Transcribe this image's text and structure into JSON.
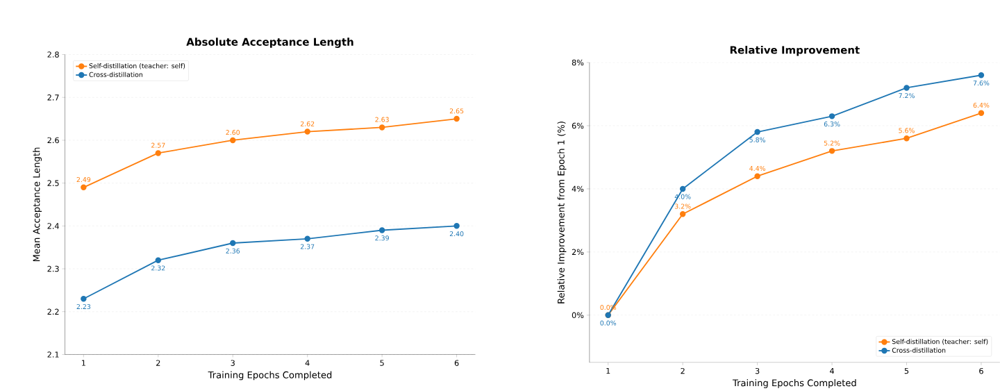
{
  "chart_data": [
    {
      "type": "line",
      "title": "Absolute Acceptance Length",
      "xlabel": "Training Epochs Completed",
      "ylabel": "Mean Acceptance Length",
      "x": [
        1,
        2,
        3,
        4,
        5,
        6
      ],
      "xlim": [
        0.75,
        6.25
      ],
      "xticks": [
        1,
        2,
        3,
        4,
        5,
        6
      ],
      "ylim": [
        2.1,
        2.8
      ],
      "yticks": [
        2.1,
        2.2,
        2.3,
        2.4,
        2.5,
        2.6,
        2.7,
        2.8
      ],
      "grid": "y",
      "legend": "top left",
      "marker": "circle",
      "line_style": "solid",
      "series": [
        {
          "name": "Self-distillation (teacher: self)",
          "color": "#ff7f0e",
          "values": [
            2.49,
            2.57,
            2.6,
            2.62,
            2.63,
            2.65
          ],
          "value_labels": [
            "2.49",
            "2.57",
            "2.60",
            "2.62",
            "2.63",
            "2.65"
          ]
        },
        {
          "name": "Cross-distillation",
          "color": "#1f77b4",
          "values": [
            2.23,
            2.32,
            2.36,
            2.37,
            2.39,
            2.4
          ],
          "value_labels": [
            "2.23",
            "2.32",
            "2.36",
            "2.37",
            "2.39",
            "2.40"
          ]
        }
      ]
    },
    {
      "type": "line",
      "title": "Relative Improvement",
      "xlabel": "Training Epochs Completed",
      "ylabel": "Relative Improvement from Epoch 1 (%)",
      "x": [
        1,
        2,
        3,
        4,
        5,
        6
      ],
      "xlim": [
        0.75,
        6.25
      ],
      "xticks": [
        1,
        2,
        3,
        4,
        5,
        6
      ],
      "ylim": [
        -1.5,
        8
      ],
      "yticks": [
        {
          "value": 0,
          "label": "0%"
        },
        {
          "value": 2,
          "label": "2%"
        },
        {
          "value": 4,
          "label": "4%"
        },
        {
          "value": 6,
          "label": "6%"
        },
        {
          "value": 8,
          "label": "8%"
        }
      ],
      "grid": "y",
      "legend": "bottom right",
      "marker": "circle",
      "line_style": "solid",
      "series": [
        {
          "name": "Self-distillation (teacher: self)",
          "color": "#ff7f0e",
          "values": [
            0.0,
            3.2,
            4.4,
            5.2,
            5.6,
            6.4
          ],
          "value_labels": [
            "0.0%",
            "3.2%",
            "4.4%",
            "5.2%",
            "5.6%",
            "6.4%"
          ]
        },
        {
          "name": "Cross-distillation",
          "color": "#1f77b4",
          "values": [
            0.0,
            4.0,
            5.8,
            6.3,
            7.2,
            7.6
          ],
          "value_labels": [
            "0.0%",
            "4.0%",
            "5.8%",
            "6.3%",
            "7.2%",
            "7.6%"
          ]
        }
      ]
    }
  ]
}
